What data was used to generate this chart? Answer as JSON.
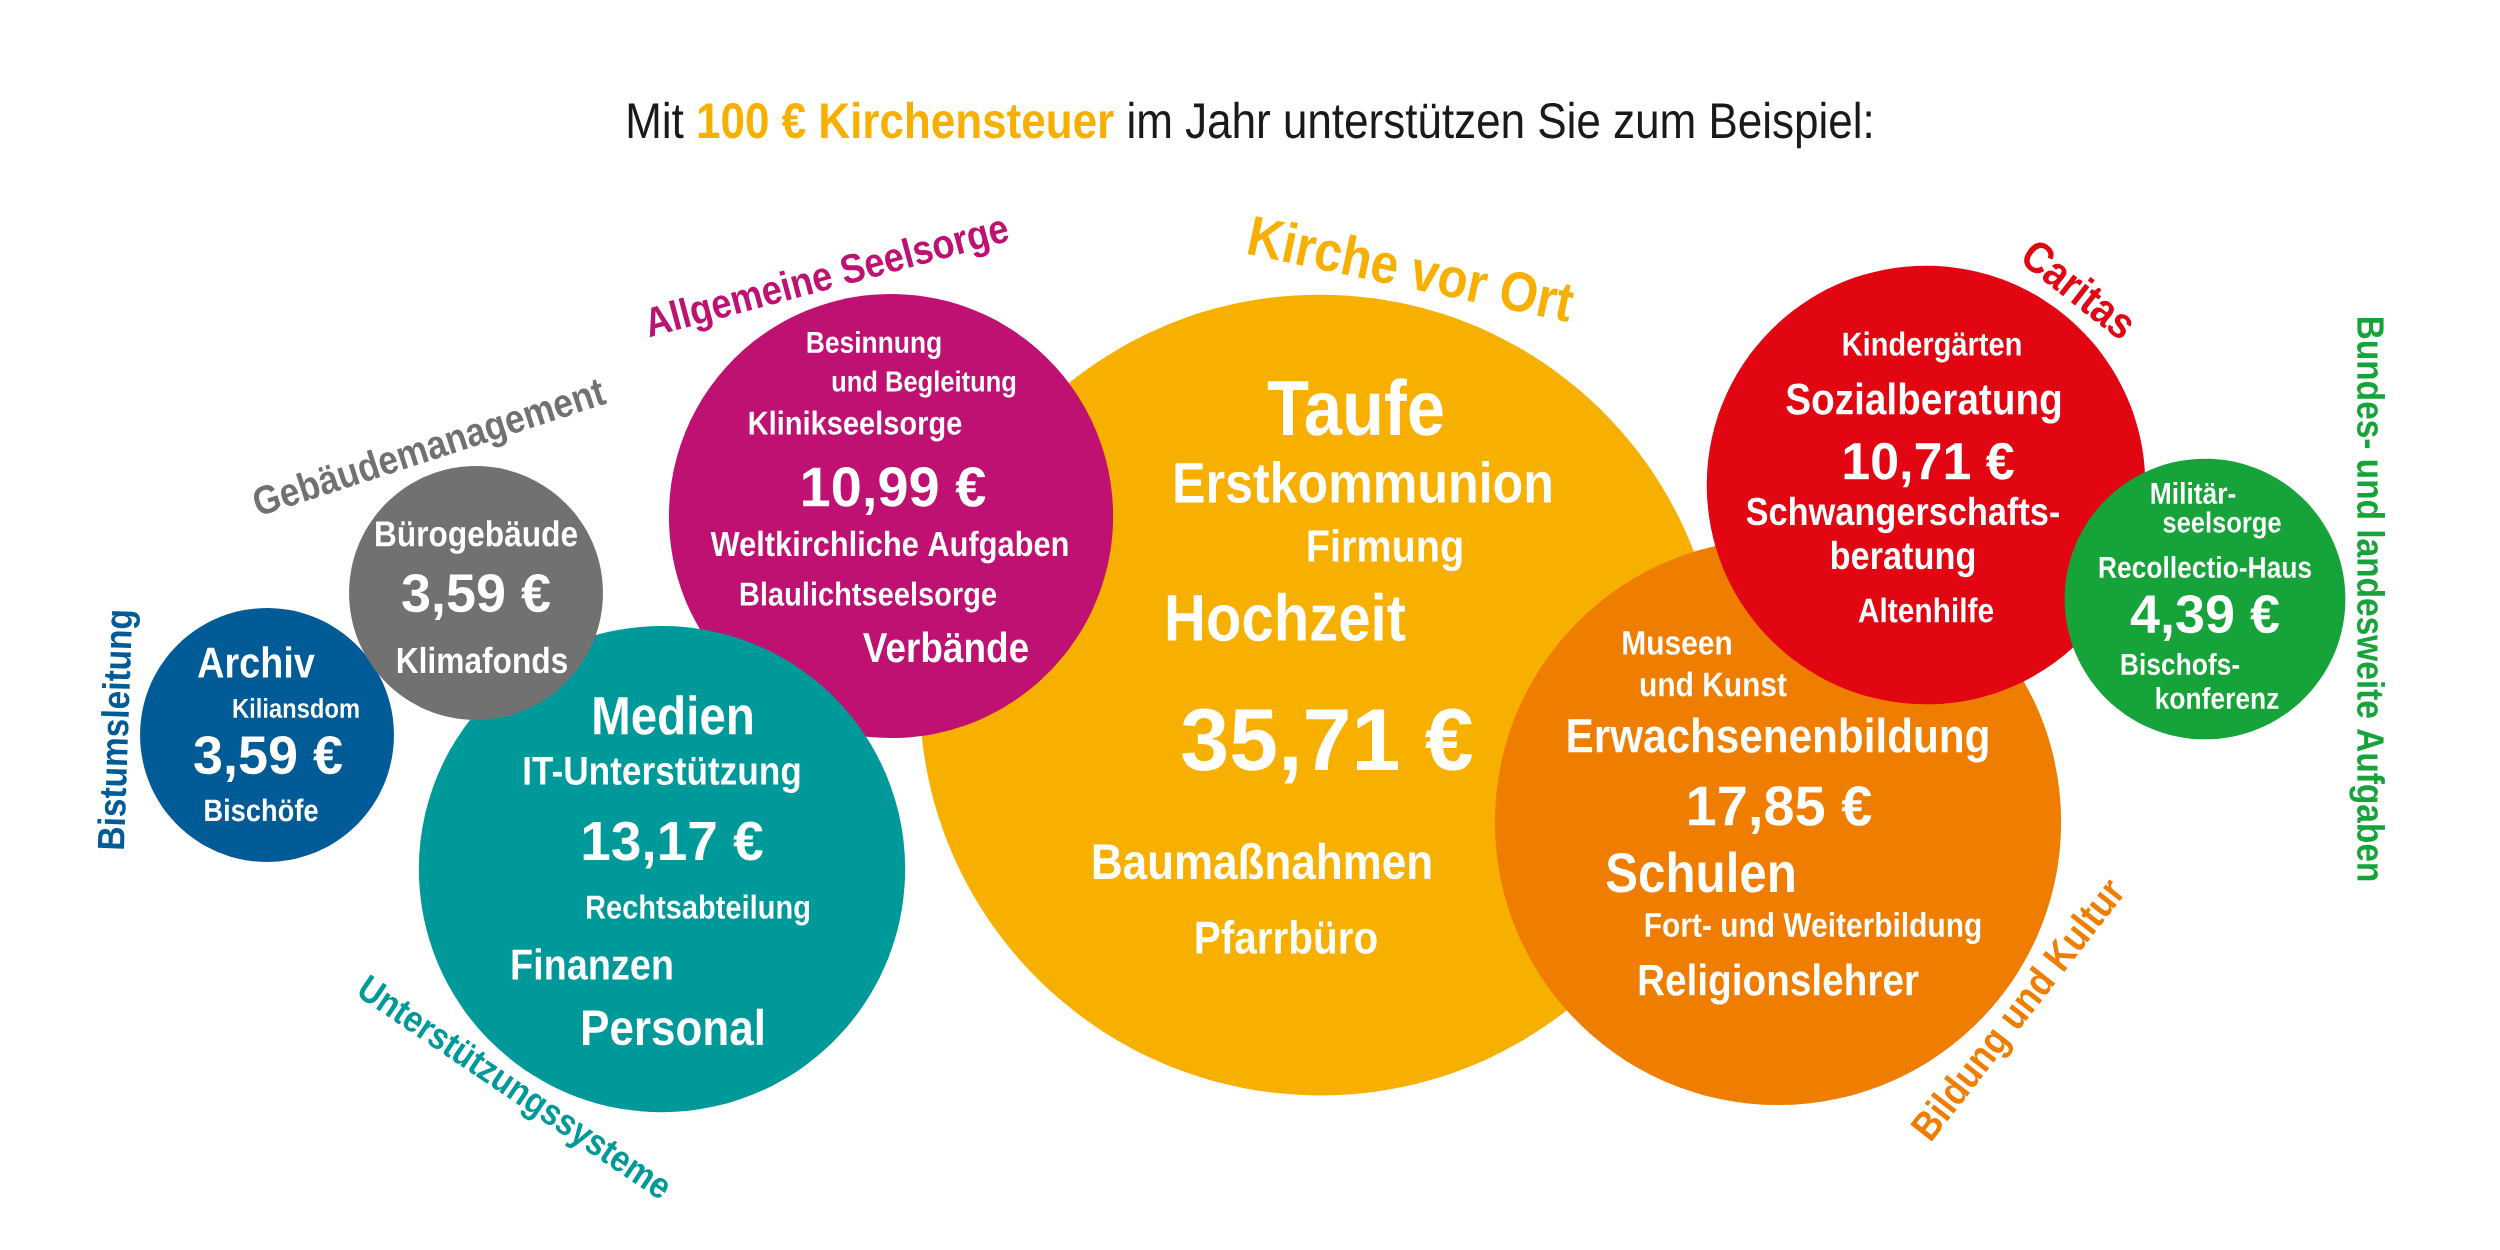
{
  "chart_data": {
    "type": "other",
    "title": "Mit **100 € Kirchensteuer** im Jahr unterstützen Sie zum Beispiel:",
    "categories": [
      "Bistumsleitung",
      "Gebäudemanagement",
      "Unterstützungssysteme",
      "Allgemeine Seelsorge",
      "Kirche vor Ort",
      "Bildung und Kultur",
      "Caritas",
      "Bundes- und landesweite Aufgaben"
    ],
    "values": [
      3.59,
      3.59,
      13.17,
      10.99,
      35.71,
      17.85,
      10.71,
      4.39
    ],
    "value_labels": [
      "3,59 €",
      "3,59 €",
      "13,17 €",
      "10,99 €",
      "35,71 €",
      "17,85 €",
      "10,71 €",
      "4,39 €"
    ],
    "colors": [
      "#005b96",
      "#717171",
      "#00999a",
      "#be1171",
      "#f8b000",
      "#ef7d00",
      "#e20613",
      "#16a43a"
    ],
    "annotations": [
      "Archiv",
      "Kiliansdom",
      "Bischöfe",
      "Bürogebäude",
      "Klimafonds",
      "Medien",
      "IT-Unterstützung",
      "Rechtsabteilung",
      "Finanzen",
      "Personal",
      "Besinnung",
      "und Begleitung",
      "Klinikseelsorge",
      "Weltkirchliche Aufgaben",
      "Blaulichtseelsorge",
      "Verbände",
      "Taufe",
      "Erstkommunion",
      "Firmung",
      "Hochzeit",
      "Baumaßnahmen",
      "Pfarrbüro",
      "Museen",
      "und Kunst",
      "Erwachsenenbildung",
      "Schulen",
      "Fort- und Weiterbildung",
      "Religionslehrer",
      "Kindergärten",
      "Sozialberatung",
      "Schwangerschafts-",
      "beratung",
      "Altenhilfe",
      "Militär-",
      "seelsorge",
      "Recollectio-Haus",
      "Bischofs-",
      "konferenz"
    ]
  }
}
